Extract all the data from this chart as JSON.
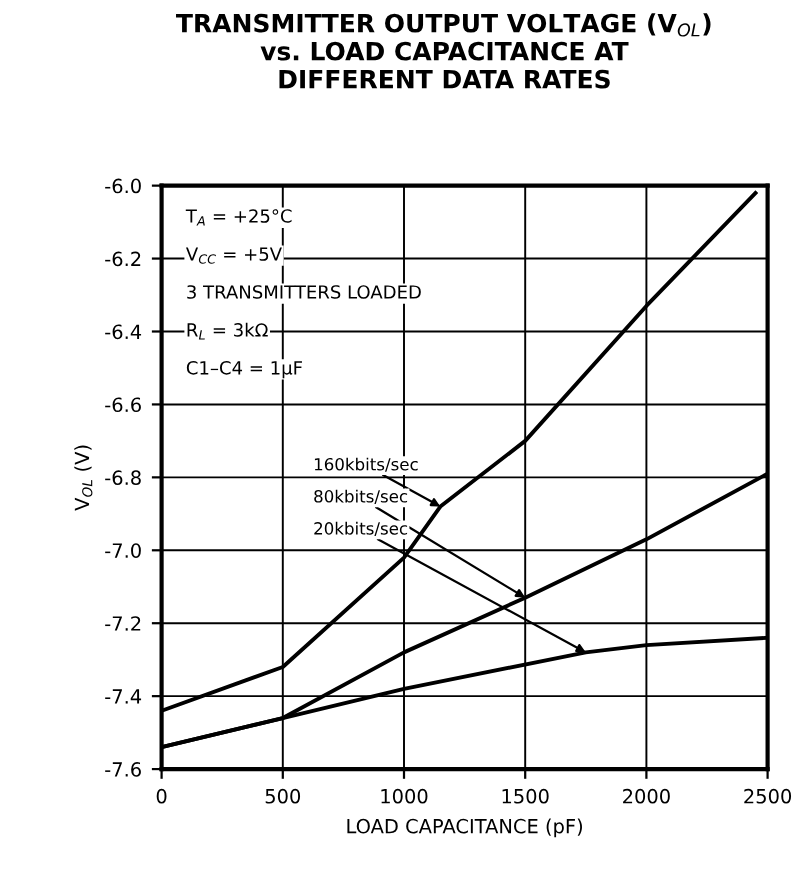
{
  "chart_data": {
    "type": "line",
    "title": "TRANSMITTER OUTPUT VOLTAGE (V$_{OL}$)\nvs. LOAD CAPACITANCE AT\nDIFFERENT DATA RATES",
    "xlabel": "LOAD CAPACITANCE (pF)",
    "ylabel": "V$_{OL}$ (V)",
    "series": [
      {
        "name": "160kbits/sec",
        "color": "#000000",
        "x": [
          0,
          500,
          1000,
          1150,
          1500,
          2000,
          2450
        ],
        "values": [
          -7.44,
          -7.32,
          -7.02,
          -6.88,
          -6.7,
          -6.33,
          -6.02
        ]
      },
      {
        "name": "80kbits/sec",
        "color": "#000000",
        "x": [
          0,
          500,
          1000,
          1500,
          2000,
          2500
        ],
        "values": [
          -7.54,
          -7.46,
          -7.28,
          -7.13,
          -6.97,
          -6.79
        ]
      },
      {
        "name": "20kbits/sec",
        "color": "#000000",
        "x": [
          0,
          500,
          1000,
          1750,
          2000,
          2500
        ],
        "values": [
          -7.54,
          -7.46,
          -7.38,
          -7.28,
          -7.26,
          -7.24
        ]
      }
    ],
    "annotations": [
      "T$_{A}$ = +25°C",
      "V$_{CC}$ = +5V",
      "3 TRANSMITTERS LOADED",
      "R$_{L}$ = 3kΩ",
      "C1–C4 = 1µF"
    ],
    "xlim": [
      0,
      2500
    ],
    "ylim": [
      -7.6,
      -6.0
    ],
    "xticks": [
      0,
      500,
      1000,
      1500,
      2000,
      2500
    ],
    "yticks": [
      -7.6,
      -7.4,
      -7.2,
      {
        "value": -7.0,
        "label": "-7.0"
      },
      -6.8,
      -6.6,
      -6.4,
      -6.2,
      {
        "value": -6.0,
        "label": "-6.0"
      }
    ],
    "grid": true,
    "marker": "none",
    "line_style": "solid"
  }
}
